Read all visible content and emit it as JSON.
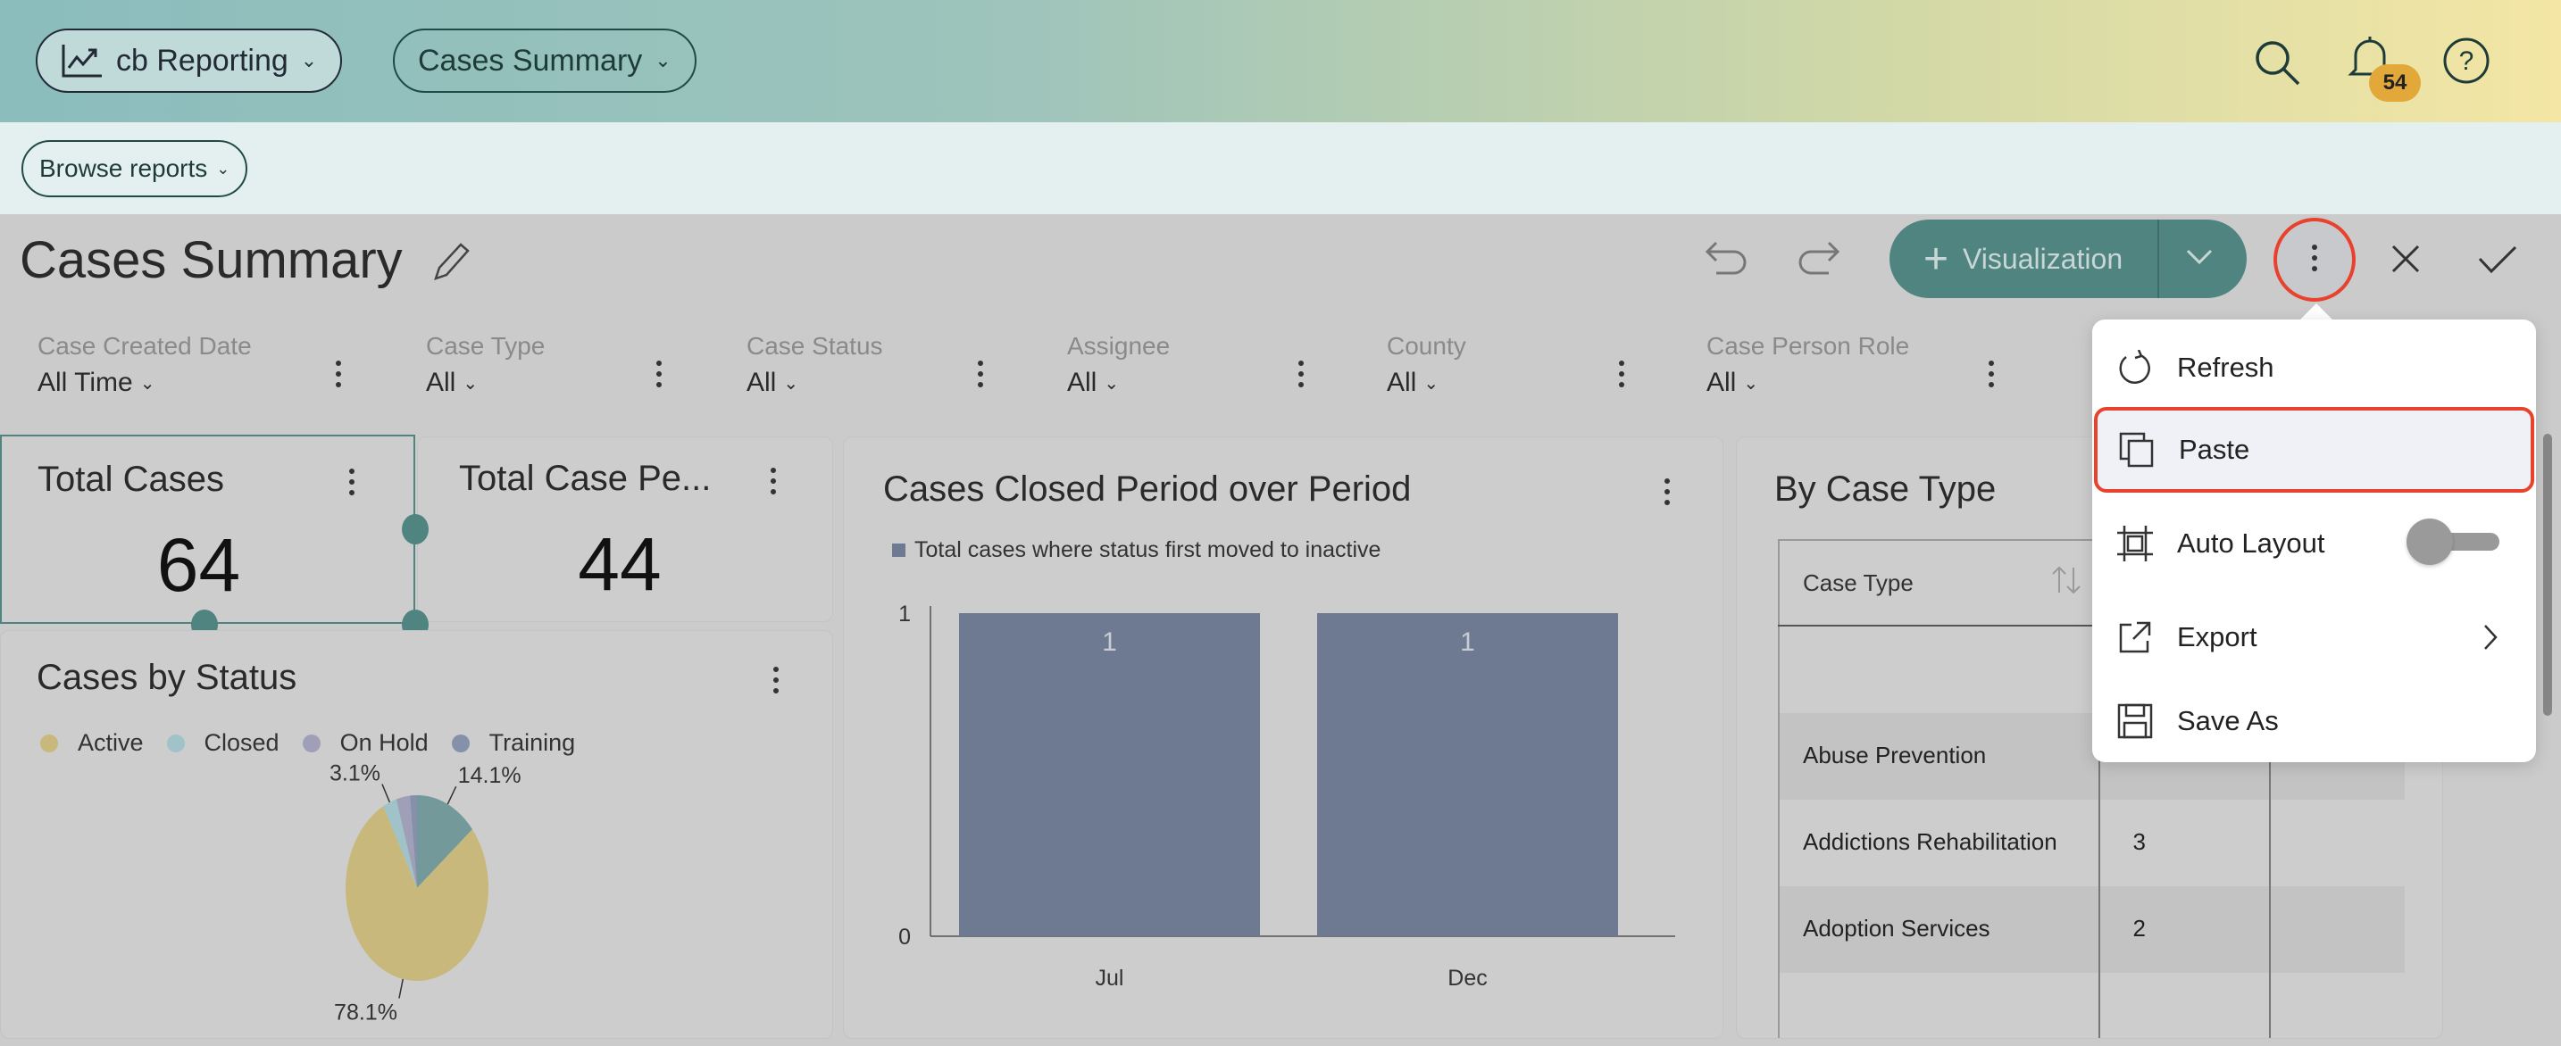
{
  "header": {
    "app_label": "cb Reporting",
    "report_label": "Cases Summary",
    "notification_count": "54",
    "icons": [
      "chart-icon",
      "search-icon",
      "bell-icon",
      "help-icon"
    ]
  },
  "subbar": {
    "browse_label": "Browse reports"
  },
  "page": {
    "title": "Cases Summary",
    "visualization_label": "Visualization"
  },
  "filters": [
    {
      "label": "Case Created Date",
      "value": "All Time"
    },
    {
      "label": "Case Type",
      "value": "All"
    },
    {
      "label": "Case Status",
      "value": "All"
    },
    {
      "label": "Assignee",
      "value": "All"
    },
    {
      "label": "County",
      "value": "All"
    },
    {
      "label": "Case Person Role",
      "value": "All"
    }
  ],
  "cards": {
    "total_cases": {
      "title": "Total Cases",
      "value": "64"
    },
    "total_case_persons": {
      "title": "Total Case Pe...",
      "value": "44"
    },
    "cases_by_status": {
      "title": "Cases by Status"
    },
    "closed_pop": {
      "title": "Cases Closed Period over Period"
    },
    "by_case_type": {
      "title": "By Case Type"
    }
  },
  "chart_data": [
    {
      "type": "pie",
      "title": "Cases by Status",
      "legend": [
        "Active",
        "Closed",
        "On Hold",
        "Training"
      ],
      "legend_colors": [
        "#c8b87c",
        "#9fc3c8",
        "#a09fb8",
        "#8590aa"
      ],
      "slices": [
        {
          "value": 14.1,
          "label": "14.1%",
          "color": "#74999a"
        },
        {
          "name": "Active",
          "value": 78.1,
          "label": "78.1%",
          "color": "#c8b87c"
        },
        {
          "name": "Closed",
          "value": 3.1,
          "label": "3.1%",
          "color": "#9fc3c8"
        },
        {
          "name": "On Hold",
          "value": 3.1,
          "label": "",
          "color": "#a09fb8"
        },
        {
          "name": "Training",
          "value": 1.6,
          "label": "",
          "color": "#8590aa"
        }
      ]
    },
    {
      "type": "bar",
      "title": "Cases Closed Period over Period",
      "legend": [
        "Total cases where status first moved to inactive"
      ],
      "categories": [
        "Jul",
        "Dec"
      ],
      "values": [
        1,
        1
      ],
      "ylim": [
        0,
        1
      ],
      "yticks": [
        "0",
        "1"
      ],
      "color": "#6e7a91"
    }
  ],
  "table": {
    "header": "Case Type",
    "rows": [
      {
        "name": "",
        "count": ""
      },
      {
        "name": "Abuse Prevention",
        "count": ""
      },
      {
        "name": "Addictions Rehabilitation",
        "count": "3"
      },
      {
        "name": "Adoption Services",
        "count": "2"
      }
    ]
  },
  "menu": {
    "items": [
      {
        "label": "Refresh",
        "icon": "refresh-icon"
      },
      {
        "label": "Paste",
        "icon": "paste-icon"
      },
      {
        "label": "Auto Layout",
        "icon": "auto-layout-icon",
        "toggle": false
      },
      {
        "label": "Export",
        "icon": "export-icon"
      },
      {
        "label": "Save As",
        "icon": "save-icon"
      }
    ]
  },
  "colors": {
    "accent": "#4f8480",
    "highlight": "#e8412c"
  }
}
